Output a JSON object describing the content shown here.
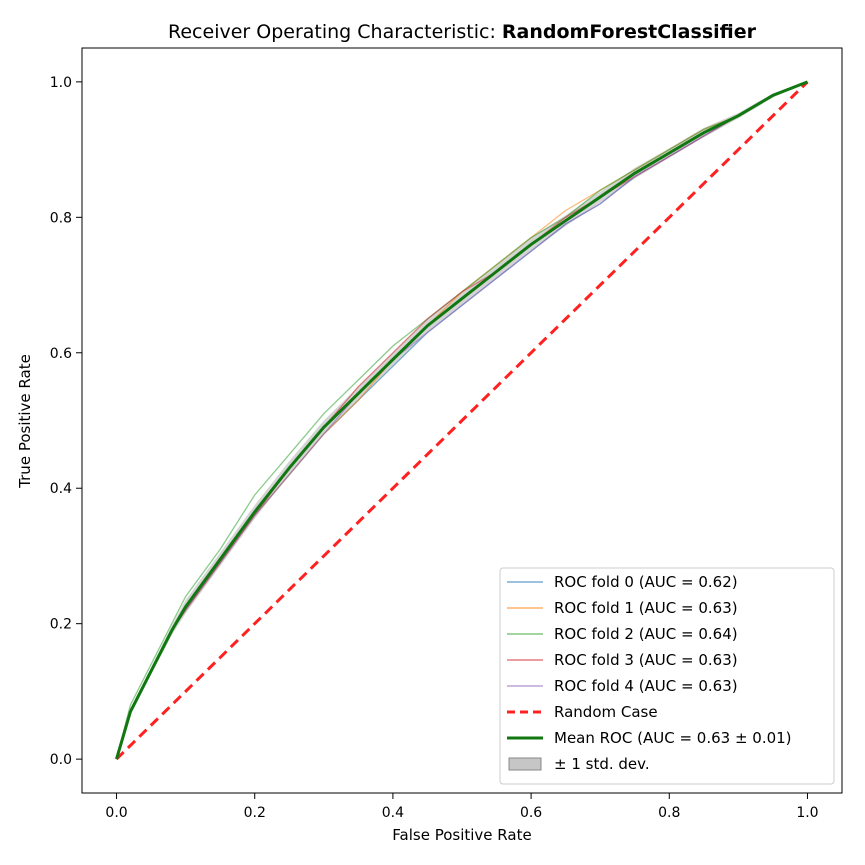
{
  "chart_data": {
    "type": "line",
    "title_prefix": "Receiver Operating Characteristic: ",
    "title_model": "RandomForestClassifier",
    "xlabel": "False Positive Rate",
    "ylabel": "True Positive Rate",
    "xlim": [
      -0.05,
      1.05
    ],
    "ylim": [
      -0.05,
      1.05
    ],
    "xticks": [
      "0.0",
      "0.2",
      "0.4",
      "0.6",
      "0.8",
      "1.0"
    ],
    "yticks": [
      "0.0",
      "0.2",
      "0.4",
      "0.6",
      "0.8",
      "1.0"
    ],
    "legend_position": "lower-right",
    "series": [
      {
        "name": "ROC fold 0 (AUC = 0.62)",
        "color": "#1f77b4",
        "x": [
          0,
          0.02,
          0.05,
          0.08,
          0.1,
          0.15,
          0.2,
          0.25,
          0.3,
          0.35,
          0.4,
          0.45,
          0.5,
          0.55,
          0.6,
          0.65,
          0.7,
          0.75,
          0.8,
          0.85,
          0.9,
          0.95,
          1.0
        ],
        "y": [
          0,
          0.07,
          0.13,
          0.19,
          0.22,
          0.29,
          0.36,
          0.42,
          0.48,
          0.53,
          0.58,
          0.63,
          0.67,
          0.71,
          0.75,
          0.79,
          0.82,
          0.86,
          0.89,
          0.92,
          0.95,
          0.98,
          1.0
        ]
      },
      {
        "name": "ROC fold 1 (AUC = 0.63)",
        "color": "#ff7f0e",
        "x": [
          0,
          0.02,
          0.05,
          0.08,
          0.1,
          0.15,
          0.2,
          0.25,
          0.3,
          0.35,
          0.4,
          0.45,
          0.5,
          0.55,
          0.6,
          0.65,
          0.7,
          0.75,
          0.8,
          0.85,
          0.9,
          0.95,
          1.0
        ],
        "y": [
          0,
          0.07,
          0.13,
          0.19,
          0.22,
          0.29,
          0.36,
          0.42,
          0.48,
          0.53,
          0.59,
          0.64,
          0.69,
          0.73,
          0.77,
          0.81,
          0.84,
          0.87,
          0.9,
          0.93,
          0.95,
          0.98,
          1.0
        ]
      },
      {
        "name": "ROC fold 2 (AUC = 0.64)",
        "color": "#2ca02c",
        "x": [
          0,
          0.02,
          0.05,
          0.08,
          0.1,
          0.15,
          0.2,
          0.25,
          0.3,
          0.35,
          0.4,
          0.45,
          0.5,
          0.55,
          0.6,
          0.65,
          0.7,
          0.75,
          0.8,
          0.85,
          0.9,
          0.95,
          1.0
        ],
        "y": [
          0,
          0.08,
          0.14,
          0.2,
          0.24,
          0.31,
          0.39,
          0.45,
          0.51,
          0.56,
          0.61,
          0.65,
          0.69,
          0.73,
          0.77,
          0.8,
          0.84,
          0.87,
          0.9,
          0.93,
          0.95,
          0.98,
          1.0
        ]
      },
      {
        "name": "ROC fold 3 (AUC = 0.63)",
        "color": "#d62728",
        "x": [
          0,
          0.02,
          0.05,
          0.08,
          0.1,
          0.15,
          0.2,
          0.25,
          0.3,
          0.35,
          0.4,
          0.45,
          0.5,
          0.55,
          0.6,
          0.65,
          0.7,
          0.75,
          0.8,
          0.85,
          0.9,
          0.95,
          1.0
        ],
        "y": [
          0,
          0.07,
          0.13,
          0.19,
          0.22,
          0.29,
          0.36,
          0.43,
          0.49,
          0.55,
          0.6,
          0.65,
          0.69,
          0.72,
          0.76,
          0.8,
          0.83,
          0.86,
          0.89,
          0.92,
          0.95,
          0.98,
          1.0
        ]
      },
      {
        "name": "ROC fold 4 (AUC = 0.63)",
        "color": "#9467bd",
        "x": [
          0,
          0.02,
          0.05,
          0.08,
          0.1,
          0.15,
          0.2,
          0.25,
          0.3,
          0.35,
          0.4,
          0.45,
          0.5,
          0.55,
          0.6,
          0.65,
          0.7,
          0.75,
          0.8,
          0.85,
          0.9,
          0.95,
          1.0
        ],
        "y": [
          0,
          0.07,
          0.13,
          0.19,
          0.22,
          0.29,
          0.36,
          0.42,
          0.48,
          0.54,
          0.59,
          0.63,
          0.67,
          0.71,
          0.75,
          0.79,
          0.82,
          0.86,
          0.89,
          0.92,
          0.95,
          0.98,
          1.0
        ]
      },
      {
        "name": "Random Case",
        "color": "#ff2020",
        "style": "dashed",
        "x": [
          0,
          1
        ],
        "y": [
          0,
          1
        ]
      },
      {
        "name": "Mean ROC (AUC = 0.63 ± 0.01)",
        "color": "#117711",
        "style": "bold",
        "x": [
          0,
          0.02,
          0.05,
          0.08,
          0.1,
          0.15,
          0.2,
          0.25,
          0.3,
          0.35,
          0.4,
          0.45,
          0.5,
          0.55,
          0.6,
          0.65,
          0.7,
          0.75,
          0.8,
          0.85,
          0.9,
          0.95,
          1.0
        ],
        "y": [
          0,
          0.07,
          0.13,
          0.19,
          0.225,
          0.295,
          0.365,
          0.43,
          0.49,
          0.54,
          0.59,
          0.64,
          0.68,
          0.72,
          0.76,
          0.795,
          0.83,
          0.865,
          0.895,
          0.925,
          0.95,
          0.98,
          1.0
        ]
      }
    ],
    "band": {
      "name": "± 1 std. dev.",
      "color": "#a0a0a0",
      "x": [
        0,
        0.02,
        0.05,
        0.08,
        0.1,
        0.15,
        0.2,
        0.25,
        0.3,
        0.35,
        0.4,
        0.45,
        0.5,
        0.55,
        0.6,
        0.65,
        0.7,
        0.75,
        0.8,
        0.85,
        0.9,
        0.95,
        1.0
      ],
      "lower": [
        0,
        0.065,
        0.125,
        0.183,
        0.215,
        0.285,
        0.355,
        0.42,
        0.48,
        0.53,
        0.58,
        0.63,
        0.67,
        0.71,
        0.75,
        0.787,
        0.822,
        0.857,
        0.888,
        0.918,
        0.946,
        0.977,
        1.0
      ],
      "upper": [
        0,
        0.075,
        0.135,
        0.197,
        0.235,
        0.305,
        0.375,
        0.44,
        0.5,
        0.55,
        0.6,
        0.65,
        0.69,
        0.73,
        0.77,
        0.803,
        0.838,
        0.873,
        0.902,
        0.932,
        0.954,
        0.983,
        1.0
      ]
    }
  }
}
